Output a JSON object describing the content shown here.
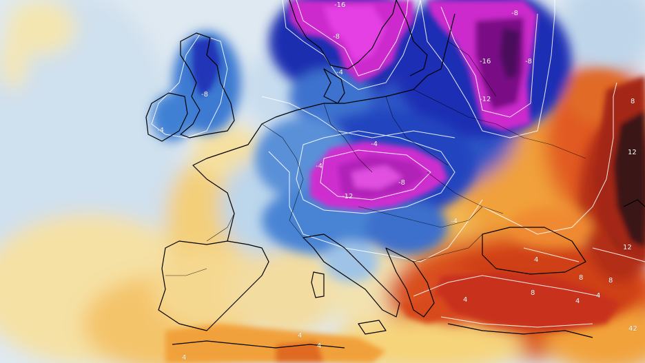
{
  "map": {
    "kind": "temperature-anomaly",
    "region": "Europe",
    "colors": {
      "ocean_light": "#dfe9f1",
      "cold_light": "#a9cbe6",
      "cold_mid": "#3f7fd0",
      "cold_deep": "#1a2fb0",
      "very_cold": "#d62fd6",
      "extreme_cold": "#7a0f86",
      "warm_light": "#f7e3a6",
      "warm_mid": "#f2a23a",
      "warm_high": "#d9481c",
      "extreme_warm": "#3a1818",
      "contour": "#ffffff",
      "coastline": "#000000"
    },
    "labels": [
      {
        "id": "label-minus16-north",
        "text": "-16"
      },
      {
        "id": "label-minus8-north",
        "text": "-8"
      },
      {
        "id": "label-minus8-ne",
        "text": "-8"
      },
      {
        "id": "label-minus8-east",
        "text": "-8"
      },
      {
        "id": "label-minus16-east",
        "text": "-16"
      },
      {
        "id": "label-minus12-east",
        "text": "-12"
      },
      {
        "id": "label-minus4-denmark",
        "text": "-4"
      },
      {
        "id": "label-minus8-britain",
        "text": "-8"
      },
      {
        "id": "label-minus4-ireland",
        "text": "-4"
      },
      {
        "id": "label-minus4-germany",
        "text": "-4"
      },
      {
        "id": "label-minus4-belgium",
        "text": "-4"
      },
      {
        "id": "label-minus8-alps",
        "text": "-8"
      },
      {
        "id": "label-minus12-alps",
        "text": "-12"
      },
      {
        "id": "label-minus4-balkans",
        "text": "-4"
      },
      {
        "id": "label-8-russia",
        "text": "8"
      },
      {
        "id": "label-12-russia",
        "text": "12"
      },
      {
        "id": "label-12-caucasus",
        "text": "12"
      },
      {
        "id": "label-4-blacksea",
        "text": "4"
      },
      {
        "id": "label-4-aegean",
        "text": "4"
      },
      {
        "id": "label-8-turkey",
        "text": "8"
      },
      {
        "id": "label-8-anatolia",
        "text": "8"
      },
      {
        "id": "label-8-east-turkey",
        "text": "8"
      },
      {
        "id": "label-4-turkey-south",
        "text": "4"
      },
      {
        "id": "label-4-levant",
        "text": "4"
      },
      {
        "id": "label-4-north-africa",
        "text": "4"
      },
      {
        "id": "label-42-libya",
        "text": "42"
      },
      {
        "id": "label-4-libya",
        "text": "4"
      },
      {
        "id": "label-4-southwest",
        "text": "4"
      }
    ]
  }
}
